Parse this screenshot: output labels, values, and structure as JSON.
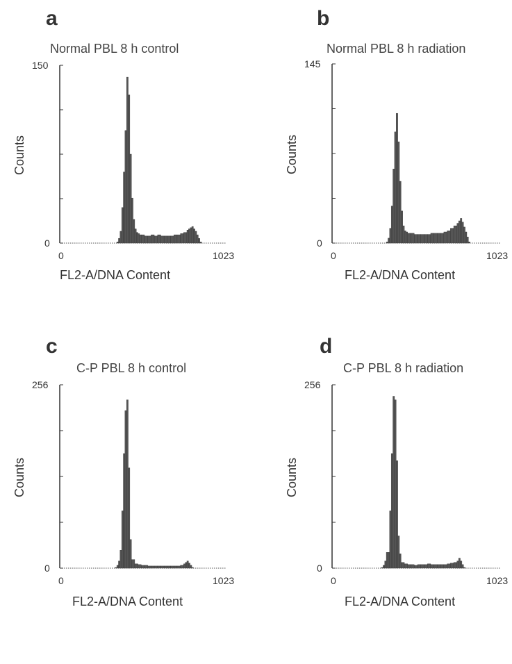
{
  "chart_data": [
    {
      "type": "bar",
      "panel_label": "a",
      "title": "Normal PBL 8 h control",
      "xlabel": "FL2-A/DNA Content",
      "ylabel": "Counts",
      "xlim": [
        0,
        1023
      ],
      "ylim": [
        0,
        150
      ],
      "x_tick_labels": [
        "0",
        "1023"
      ],
      "y_tick_labels": [
        "0",
        "150"
      ],
      "x": [
        350,
        360,
        370,
        380,
        390,
        400,
        410,
        420,
        430,
        440,
        450,
        460,
        470,
        480,
        490,
        500,
        520,
        540,
        560,
        580,
        600,
        620,
        640,
        660,
        680,
        700,
        720,
        740,
        760,
        780,
        790,
        800,
        810,
        820,
        830,
        840,
        850,
        860
      ],
      "values": [
        1,
        4,
        10,
        30,
        60,
        95,
        140,
        125,
        75,
        38,
        20,
        12,
        9,
        8,
        7,
        7,
        6,
        6,
        7,
        6,
        7,
        6,
        6,
        6,
        6,
        7,
        7,
        8,
        9,
        11,
        12,
        13,
        14,
        12,
        10,
        7,
        4,
        1
      ]
    },
    {
      "type": "bar",
      "panel_label": "b",
      "title": "Normal PBL 8 h radiation",
      "xlabel": "FL2-A/DNA Content",
      "ylabel": "Counts",
      "xlim": [
        0,
        1023
      ],
      "ylim": [
        0,
        145
      ],
      "x_tick_labels": [
        "0",
        "1023"
      ],
      "y_tick_labels": [
        "0",
        "145"
      ],
      "x": [
        330,
        340,
        350,
        360,
        370,
        380,
        390,
        400,
        410,
        420,
        430,
        440,
        450,
        460,
        480,
        500,
        520,
        540,
        560,
        580,
        600,
        620,
        640,
        660,
        680,
        700,
        720,
        740,
        760,
        770,
        780,
        790,
        800,
        810,
        820,
        830
      ],
      "values": [
        1,
        4,
        12,
        30,
        60,
        90,
        105,
        82,
        50,
        26,
        14,
        10,
        9,
        8,
        8,
        7,
        7,
        7,
        7,
        7,
        8,
        8,
        8,
        8,
        9,
        10,
        12,
        14,
        16,
        18,
        20,
        17,
        13,
        9,
        5,
        1
      ]
    },
    {
      "type": "bar",
      "panel_label": "c",
      "title": "C-P PBL 8 h control",
      "xlabel": "FL2-A/DNA Content",
      "ylabel": "Counts",
      "xlim": [
        0,
        1023
      ],
      "ylim": [
        0,
        256
      ],
      "x_tick_labels": [
        "0",
        "1023"
      ],
      "y_tick_labels": [
        "0",
        "256"
      ],
      "x": [
        340,
        350,
        360,
        370,
        380,
        390,
        400,
        410,
        420,
        430,
        440,
        460,
        480,
        500,
        520,
        540,
        560,
        580,
        600,
        620,
        640,
        660,
        680,
        700,
        720,
        740,
        760,
        770,
        780,
        790,
        800,
        810
      ],
      "values": [
        1,
        4,
        10,
        25,
        80,
        160,
        220,
        235,
        140,
        40,
        12,
        6,
        5,
        4,
        4,
        3,
        3,
        3,
        3,
        3,
        3,
        3,
        3,
        3,
        3,
        4,
        6,
        8,
        10,
        7,
        4,
        1
      ]
    },
    {
      "type": "bar",
      "panel_label": "d",
      "title": "C-P PBL 8 h radiation",
      "xlabel": "FL2-A/DNA Content",
      "ylabel": "Counts",
      "xlim": [
        0,
        1023
      ],
      "ylim": [
        0,
        256
      ],
      "x_tick_labels": [
        "0",
        "1023"
      ],
      "y_tick_labels": [
        "0",
        "256"
      ],
      "x": [
        300,
        310,
        320,
        330,
        340,
        350,
        360,
        370,
        380,
        390,
        400,
        410,
        420,
        440,
        460,
        480,
        500,
        520,
        540,
        560,
        580,
        600,
        620,
        640,
        660,
        680,
        700,
        720,
        740,
        760,
        770,
        780,
        790,
        800
      ],
      "values": [
        1,
        4,
        10,
        22,
        22,
        80,
        160,
        240,
        235,
        150,
        45,
        20,
        8,
        6,
        5,
        5,
        4,
        5,
        5,
        5,
        6,
        5,
        5,
        5,
        5,
        5,
        6,
        7,
        8,
        10,
        14,
        10,
        5,
        1
      ]
    }
  ]
}
